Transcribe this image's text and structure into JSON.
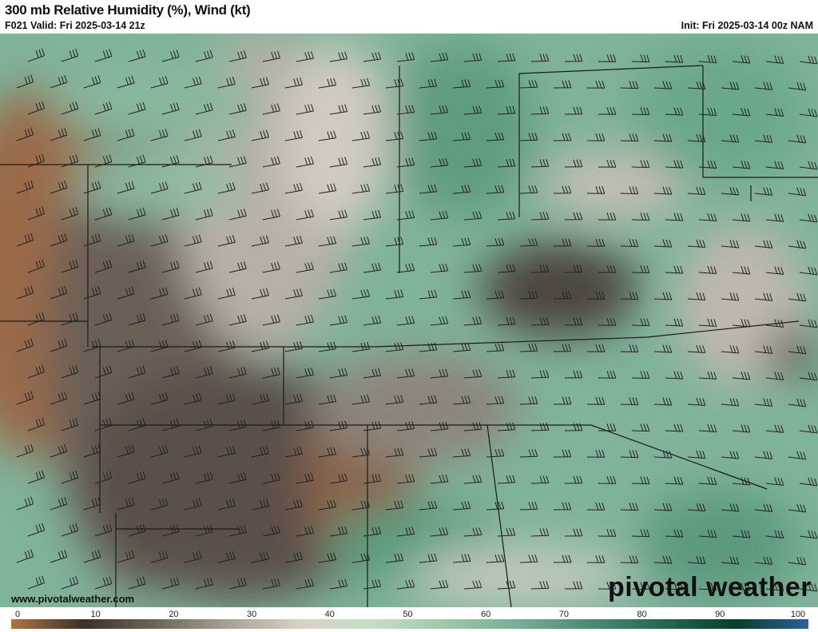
{
  "header": {
    "title": "300 mb Relative Humidity (%), Wind (kt)",
    "valid": "F021 Valid: Fri 2025-03-14 21z",
    "init": "Init: Fri 2025-03-14 00z NAM"
  },
  "footer": {
    "url": "www.pivotalweather.com",
    "brand": "pivotal weather"
  },
  "colorbar": {
    "ticks": [
      "0",
      "10",
      "20",
      "30",
      "40",
      "50",
      "60",
      "70",
      "80",
      "90",
      "100"
    ],
    "stops": [
      "#b07444",
      "#3c3128",
      "#6d655a",
      "#a9a195",
      "#d9d1c5",
      "#c4dfc6",
      "#9ec7a8",
      "#78ad96",
      "#4a8b70",
      "#226a4c",
      "#073f2a",
      "#2c5f9f"
    ]
  }
}
